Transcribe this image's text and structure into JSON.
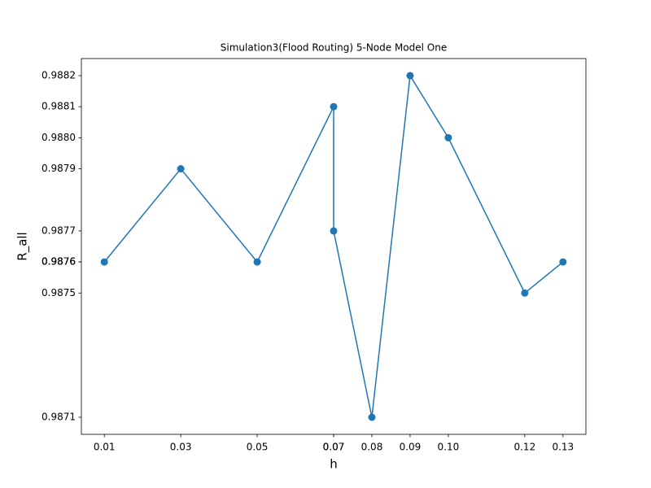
{
  "chart_data": {
    "type": "line",
    "title": "Simulation3(Flood Routing) 5-Node Model One",
    "x_label": "h",
    "y_label": "R_all",
    "x": [
      0.01,
      0.03,
      0.05,
      0.07,
      0.07,
      0.08,
      0.09,
      0.1,
      0.12,
      0.13
    ],
    "values": [
      0.9876,
      0.9879,
      0.9876,
      0.9881,
      0.9877,
      0.9871,
      0.9882,
      0.988,
      0.9875,
      0.9876
    ],
    "color": "#1f77b4",
    "xlim": [
      0.004,
      0.136
    ],
    "ylim": [
      0.987045,
      0.988255
    ],
    "xticks": [
      0.01,
      0.03,
      0.05,
      0.07,
      0.07,
      0.08,
      0.09,
      {
        "value": 0.1,
        "label": "0.10"
      },
      0.12,
      0.13
    ],
    "yticks": [
      0.9876,
      0.9879,
      0.9876,
      0.9881,
      0.9877,
      0.9871,
      0.9882,
      {
        "value": 0.988,
        "label": "0.9880"
      },
      0.9875,
      0.9876
    ],
    "grid": false
  }
}
